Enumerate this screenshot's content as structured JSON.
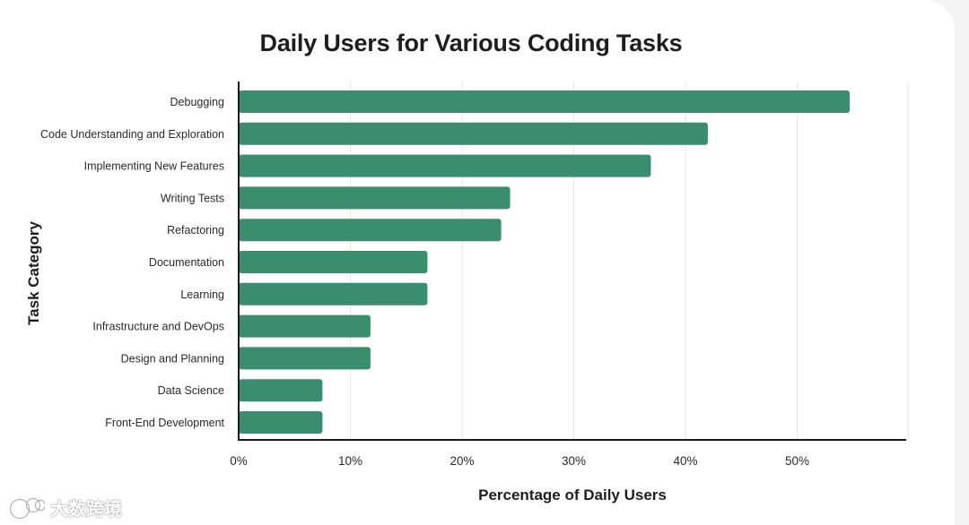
{
  "chart_data": {
    "type": "bar",
    "orientation": "horizontal",
    "title": "Daily Users for Various Coding Tasks",
    "xlabel": "Percentage of Daily Users",
    "ylabel": "Task Category",
    "categories": [
      "Debugging",
      "Code Understanding and Exploration",
      "Implementing New Features",
      "Writing Tests",
      "Refactoring",
      "Documentation",
      "Learning",
      "Infrastructure and DevOps",
      "Design and Planning",
      "Data Science",
      "Front-End Development"
    ],
    "values": [
      54.7,
      42.0,
      36.9,
      24.3,
      23.5,
      16.9,
      16.9,
      11.8,
      11.8,
      7.5,
      7.5
    ],
    "unit": "%",
    "xlim": [
      0,
      60
    ],
    "xticks": [
      0,
      10,
      20,
      30,
      40,
      50
    ],
    "xtick_labels": [
      "0%",
      "10%",
      "20%",
      "30%",
      "40%",
      "50%"
    ],
    "grid": "vertical",
    "legend": "none",
    "bar_color": "#3a8d6f"
  },
  "watermark": {
    "text": "大数跨境",
    "icon": "cat-logo-icon"
  }
}
